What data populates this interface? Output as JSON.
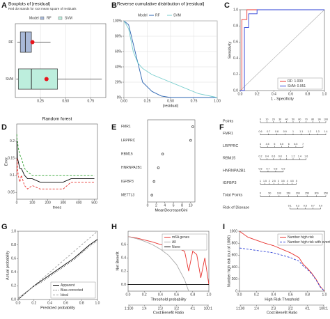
{
  "chart_data": [
    {
      "panel": "A",
      "type": "box",
      "title": "Boxplots of |residual|",
      "subtitle": "Red dot stands for root mean square of residuals",
      "legend_title": "Model",
      "legend": "top",
      "categories": [
        "RF",
        "SVM"
      ],
      "xlim": [
        0,
        0.9
      ],
      "xticks": [
        0.25,
        {
          "value": 0.5,
          "label": "0.50"
        },
        0.75
      ],
      "grid": true,
      "series": [
        {
          "name": "RF",
          "color": "#a9b9d8",
          "min": 0.02,
          "q1": 0.05,
          "median": 0.1,
          "q3": 0.16,
          "max": 0.35,
          "rms": 0.17
        },
        {
          "name": "SVM",
          "color": "#bdeedd",
          "min": 0.01,
          "q1": 0.03,
          "median": 0.16,
          "q3": 0.42,
          "max": 0.86,
          "rms": 0.31
        }
      ]
    },
    {
      "panel": "B",
      "type": "line",
      "title": "Reverse cumulative distribution of |residual|",
      "legend_title": "Model",
      "legend": "top",
      "xlabel": "|residual|",
      "x": [
        0,
        0.05,
        0.1,
        0.15,
        0.2,
        0.3,
        0.4,
        0.5,
        0.6,
        0.8,
        1.0
      ],
      "xlim": [
        0,
        1
      ],
      "grid": true,
      "xticks": [
        {
          "value": 0,
          "label": "0.00"
        },
        0.25,
        {
          "value": 0.5,
          "label": "0.50"
        },
        0.75,
        {
          "value": 1,
          "label": "1.00"
        }
      ],
      "ylim": [
        0,
        100
      ],
      "yticks": [
        {
          "value": 0,
          "label": "0%"
        },
        {
          "value": 20,
          "label": "20%"
        },
        {
          "value": 40,
          "label": "40%"
        },
        {
          "value": 60,
          "label": "60%"
        },
        {
          "value": 80,
          "label": "80%"
        },
        {
          "value": 100,
          "label": "100%"
        }
      ],
      "series": [
        {
          "name": "RF",
          "color": "#2a63b0",
          "values": [
            100,
            95,
            70,
            45,
            20,
            8,
            2,
            0,
            0,
            0,
            0
          ]
        },
        {
          "name": "SVM",
          "color": "#74cccc",
          "values": [
            100,
            90,
            60,
            45,
            38,
            30,
            25,
            20,
            15,
            5,
            0
          ]
        }
      ]
    },
    {
      "panel": "C",
      "type": "line",
      "xlabel": "1 - Specificity",
      "ylabel": "Sensitivity",
      "legend": "bottom-right",
      "diagonal": true,
      "xlim": [
        0,
        1
      ],
      "ylim": [
        0,
        1
      ],
      "xticks": [
        {
          "value": 0,
          "label": "0.0"
        },
        0.2,
        0.4,
        0.6,
        0.8,
        {
          "value": 1,
          "label": "1.0"
        }
      ],
      "yticks": [
        {
          "value": 0,
          "label": "0.0"
        },
        0.2,
        0.4,
        0.6,
        0.8,
        {
          "value": 1,
          "label": "1.0"
        }
      ],
      "series": [
        {
          "name": "RF: 1.000",
          "color": "#e8322e",
          "x": [
            0,
            0.02,
            0.02,
            0.08,
            0.08,
            1
          ],
          "values": [
            0,
            0,
            0.88,
            0.88,
            1,
            1
          ]
        },
        {
          "name": "SVM: 0.951",
          "color": "#2b3fd6",
          "x": [
            0,
            0.05,
            0.05,
            0.1,
            0.1,
            0.2,
            0.2,
            1
          ],
          "values": [
            0,
            0,
            0.78,
            0.78,
            0.95,
            0.95,
            1,
            1
          ]
        }
      ]
    },
    {
      "panel": "D",
      "type": "line",
      "title": "Random forest",
      "xlabel": "trees",
      "ylabel": "Error",
      "x": [
        1,
        3,
        5,
        10,
        20,
        30,
        50,
        70,
        100,
        150,
        200,
        300,
        350,
        400,
        450,
        500
      ],
      "xlim": [
        0,
        520
      ],
      "xticks": [
        0,
        100,
        200,
        300,
        400,
        500
      ],
      "ylim": [
        0.03,
        0.25
      ],
      "yticks": [
        0.05,
        0.1,
        0.15,
        0.2
      ],
      "series": [
        {
          "color": "#000000",
          "values": [
            0.2,
            0.18,
            0.15,
            0.14,
            0.12,
            0.12,
            0.1,
            0.09,
            0.09,
            0.08,
            0.08,
            0.08,
            0.09,
            0.09,
            0.09,
            0.09
          ]
        },
        {
          "color": "#2ca02c",
          "style": "dashed",
          "values": [
            0.22,
            0.2,
            0.2,
            0.18,
            0.16,
            0.15,
            0.12,
            0.11,
            0.1,
            0.1,
            0.1,
            0.1,
            0.1,
            0.1,
            0.1,
            0.1
          ]
        },
        {
          "color": "#e8322e",
          "style": "dashed",
          "values": [
            0.1,
            0.15,
            0.12,
            0.1,
            0.08,
            0.1,
            0.07,
            0.06,
            0.07,
            0.06,
            0.06,
            0.06,
            0.08,
            0.08,
            0.08,
            0.08
          ]
        }
      ]
    },
    {
      "panel": "E",
      "type": "dot",
      "xlabel": "MeanDecreaseGini",
      "categories": [
        "FMR1",
        "LRPPRC",
        "RBM15",
        "HNRNPA2B1",
        "IGFBP3",
        "METTL3"
      ],
      "values": [
        10.5,
        10,
        3.5,
        2.5,
        1.5,
        1
      ],
      "xlim": [
        0,
        11
      ],
      "xticks": [
        0,
        2,
        4,
        6,
        8,
        10
      ],
      "color": "#333333"
    },
    {
      "panel": "F",
      "type": "nomogram",
      "rows": [
        {
          "label": "Points",
          "ticks": [
            0,
            10,
            20,
            30,
            40,
            50,
            60,
            70,
            80,
            90,
            100
          ],
          "points": [
            0,
            100
          ]
        },
        {
          "label": "FMR1",
          "ticks": [
            0.6,
            0.7,
            0.8,
            0.9,
            1,
            1.1,
            1.2,
            1.3,
            1.4
          ],
          "points": [
            0,
            100
          ]
        },
        {
          "label": "LRPPRC",
          "ticks": [
            4,
            4.5,
            5,
            5.5,
            6,
            6.5,
            7
          ],
          "points": [
            0,
            65
          ]
        },
        {
          "label": "RBM15",
          "ticks": [
            0.2,
            0.4,
            0.6,
            0.8,
            1,
            1.2,
            1.4,
            1.6
          ],
          "points": [
            0,
            70
          ]
        },
        {
          "label": "HNRNPA2B1",
          "ticks": [
            0.6,
            0.7,
            0.8,
            0.9
          ],
          "points": [
            0,
            35
          ]
        },
        {
          "label": "IGFBP3",
          "ticks": [
            1,
            1.5,
            2,
            2.5,
            3,
            3.5,
            4,
            4.5,
            5
          ],
          "points": [
            0,
            55
          ]
        },
        {
          "label": "Total Points",
          "ticks": [
            0,
            50,
            100,
            150,
            200,
            250,
            300,
            350
          ],
          "points": [
            0,
            100
          ]
        },
        {
          "label": "Risk of Disease",
          "ticks": [
            0.1,
            0.3,
            0.5,
            0.7,
            0.9
          ],
          "points": [
            45,
            92
          ]
        }
      ]
    },
    {
      "panel": "G",
      "type": "line",
      "xlabel": "Predicted probability",
      "ylabel": "Actual probability",
      "legend": "bottom-right",
      "x": [
        0,
        0.1,
        0.2,
        0.3,
        0.4,
        0.5,
        0.6,
        0.7,
        0.8,
        0.9,
        1
      ],
      "xlim": [
        0,
        1
      ],
      "ylim": [
        0,
        1
      ],
      "xticks": [
        {
          "value": 0,
          "label": "0.0"
        },
        0.2,
        0.4,
        0.6,
        0.8,
        {
          "value": 1,
          "label": "1.0"
        }
      ],
      "yticks": [
        {
          "value": 0,
          "label": "0.0"
        },
        0.2,
        0.4,
        0.6,
        0.8,
        {
          "value": 1,
          "label": "1.0"
        }
      ],
      "series": [
        {
          "name": "Apparent",
          "color": "#000000",
          "values": [
            0,
            0.1,
            0.2,
            0.28,
            0.36,
            0.44,
            0.52,
            0.6,
            0.7,
            0.8,
            0.88
          ]
        },
        {
          "name": "Bias-corrected",
          "color": "#555555",
          "style": "dotted",
          "values": [
            0.02,
            0.11,
            0.19,
            0.26,
            0.34,
            0.42,
            0.5,
            0.58,
            0.68,
            0.78,
            0.86
          ]
        },
        {
          "name": "Ideal",
          "color": "#999999",
          "style": "dashed",
          "values": [
            0,
            0.1,
            0.2,
            0.3,
            0.4,
            0.5,
            0.6,
            0.7,
            0.8,
            0.9,
            1
          ]
        }
      ]
    },
    {
      "panel": "H",
      "type": "line",
      "xlabel": "Threshold probability",
      "ylabel": "Net Benefit",
      "legend": "top-right",
      "x2label": "Cost:Benefit Ratio",
      "x": [
        0,
        0.1,
        0.2,
        0.3,
        0.4,
        0.5,
        0.6,
        0.7,
        0.75,
        0.8,
        0.85,
        0.9,
        0.95,
        1
      ],
      "xlim": [
        0,
        1
      ],
      "ylim": [
        -0.1,
        0.8
      ],
      "xticks": [
        {
          "value": 0,
          "label": "0.0"
        },
        0.2,
        0.4,
        0.6,
        0.8,
        {
          "value": 1,
          "label": "1.0"
        }
      ],
      "yticks": [
        {
          "value": 0,
          "label": "0.0"
        },
        0.2,
        0.4,
        0.6
      ],
      "x2ticks": [
        {
          "value": 0.01,
          "label": "1:100"
        },
        {
          "value": 0.2,
          "label": "1:4"
        },
        {
          "value": 0.4,
          "label": "2:3"
        },
        {
          "value": 0.6,
          "label": "3:2"
        },
        {
          "value": 0.8,
          "label": "4:1"
        },
        {
          "value": 0.99,
          "label": "100:1"
        }
      ],
      "series": [
        {
          "name": "m6A genes",
          "color": "#e8322e",
          "values": [
            0.72,
            0.7,
            0.67,
            0.64,
            0.6,
            0.58,
            0.55,
            0.5,
            0.2,
            0.5,
            0.45,
            0.1,
            0.4,
            0
          ]
        },
        {
          "name": "All",
          "color": "#aaaaaa",
          "values": [
            0.72,
            0.69,
            0.65,
            0.6,
            0.53,
            0.44,
            0.3,
            0.07,
            -0.1,
            null,
            null,
            null,
            null,
            null
          ]
        },
        {
          "name": "None",
          "color": "#000000",
          "values": [
            0,
            0,
            0,
            0,
            0,
            0,
            0,
            0,
            0,
            0,
            0,
            0,
            0,
            0
          ]
        }
      ]
    },
    {
      "panel": "I",
      "type": "line",
      "xlabel": "High Risk Threshold",
      "ylabel": "Number high risk (out of 1000)",
      "legend": "top-right",
      "x2label": "Cost:Benefit Ratio",
      "x": [
        0,
        0.1,
        0.2,
        0.3,
        0.4,
        0.5,
        0.6,
        0.7,
        0.75,
        0.8,
        0.85,
        0.9,
        0.95,
        1
      ],
      "xlim": [
        0,
        1
      ],
      "ylim": [
        0,
        1000
      ],
      "xticks": [
        {
          "value": 0,
          "label": "0.0"
        },
        0.2,
        0.4,
        0.6,
        0.8,
        {
          "value": 1,
          "label": "1.0"
        }
      ],
      "yticks": [
        0,
        200,
        400,
        600,
        800,
        1000
      ],
      "x2ticks": [
        {
          "value": 0.01,
          "label": "1:100"
        },
        {
          "value": 0.2,
          "label": "1:4"
        },
        {
          "value": 0.4,
          "label": "2:3"
        },
        {
          "value": 0.6,
          "label": "3:2"
        },
        {
          "value": 0.8,
          "label": "4:1"
        },
        {
          "value": 0.99,
          "label": "100:1"
        }
      ],
      "series": [
        {
          "name": "Number high risk",
          "color": "#e8322e",
          "values": [
            1000,
            900,
            850,
            800,
            760,
            700,
            640,
            560,
            450,
            380,
            300,
            200,
            80,
            0
          ]
        },
        {
          "name": "Number high risk with event",
          "color": "#2b3fd6",
          "style": "dashed",
          "values": [
            720,
            700,
            680,
            660,
            640,
            600,
            560,
            500,
            420,
            360,
            290,
            190,
            70,
            0
          ]
        }
      ]
    }
  ]
}
